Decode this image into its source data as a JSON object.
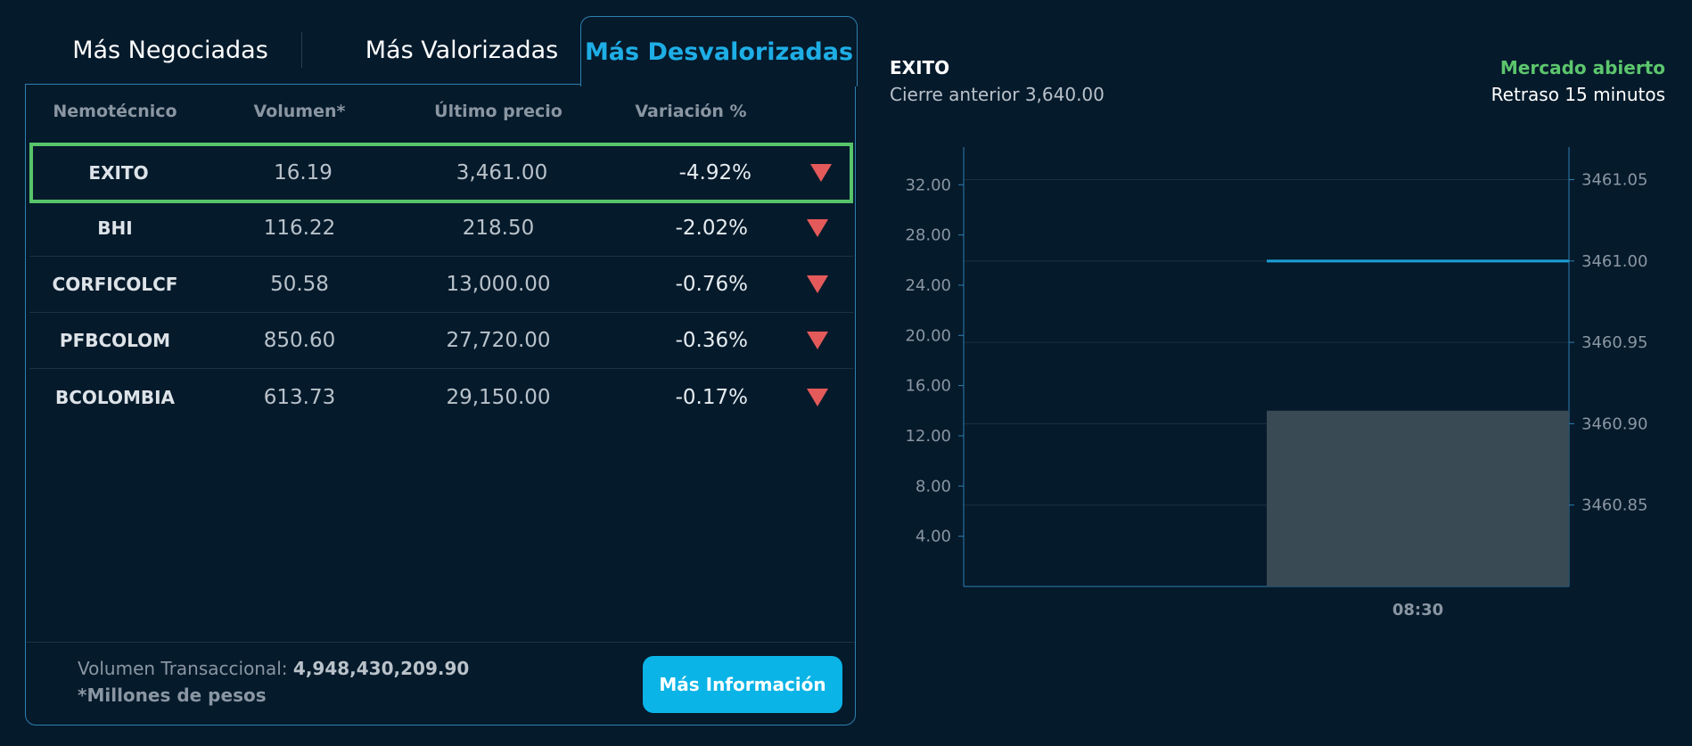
{
  "tabs": [
    {
      "label": "Más Negociadas",
      "active": false
    },
    {
      "label": "Más Valorizadas",
      "active": false
    },
    {
      "label": "Más Desvalorizadas",
      "active": true
    }
  ],
  "table": {
    "headers": [
      "Nemotécnico",
      "Volumen*",
      "Último precio",
      "Variación %"
    ],
    "rows": [
      {
        "symbol": "EXITO",
        "volume": "16.19",
        "price": "3,461.00",
        "change": "-4.92%",
        "selected": true
      },
      {
        "symbol": "BHI",
        "volume": "116.22",
        "price": "218.50",
        "change": "-2.02%"
      },
      {
        "symbol": "CORFICOLCF",
        "volume": "50.58",
        "price": "13,000.00",
        "change": "-0.76%"
      },
      {
        "symbol": "PFBCOLOM",
        "volume": "850.60",
        "price": "27,720.00",
        "change": "-0.36%"
      },
      {
        "symbol": "BCOLOMBIA",
        "volume": "613.73",
        "price": "29,150.00",
        "change": "-0.17%"
      }
    ]
  },
  "footer": {
    "volume_label": "Volumen Transaccional:",
    "volume_value": "4,948,430,209.90",
    "note": "*Millones de pesos",
    "button_label": "Más Información"
  },
  "chart_header": {
    "symbol": "EXITO",
    "previous_close": "Cierre anterior 3,640.00",
    "market_status": "Mercado abierto",
    "delay": "Retraso 15 minutos"
  },
  "colors": {
    "accent": "#1eaee6",
    "down": "#e45a5a",
    "open": "#5cc66d",
    "volume_bar": "#3a4a55",
    "price_line": "#1e9fd8"
  },
  "chart_data": {
    "type": "bar",
    "x": [
      "08:30"
    ],
    "volume": [
      14.0
    ],
    "price": [
      3461.0
    ],
    "left_ticks": [
      "4.00",
      "8.00",
      "12.00",
      "16.00",
      "20.00",
      "24.00",
      "28.00",
      "32.00"
    ],
    "right_ticks": [
      "3460.85",
      "3460.90",
      "3460.95",
      "3461.00",
      "3461.05"
    ],
    "ylim_left": [
      0,
      35
    ],
    "ylim_right": [
      3460.8,
      3461.07
    ]
  }
}
